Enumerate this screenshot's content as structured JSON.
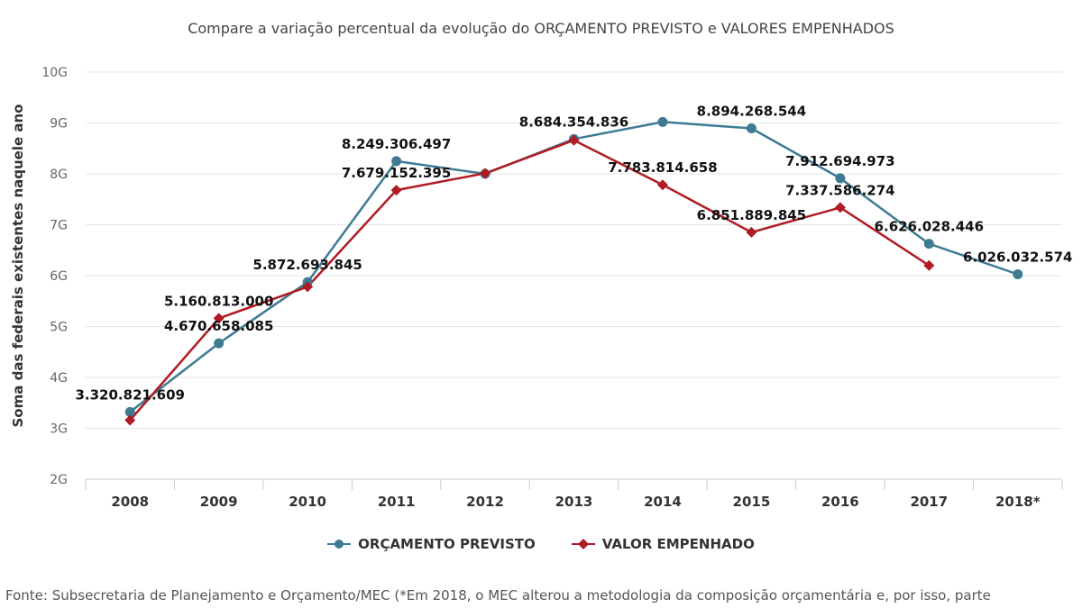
{
  "subtitle": "Compare a variação percentual da evolução do ORÇAMENTO PREVISTO e VALORES EMPENHADOS",
  "source_note": "Fonte: Subsecretaria de Planejamento e Orçamento/MEC (*Em 2018, o MEC alterou a metodologia da composição orçamentária e, por isso, parte",
  "colors": {
    "orcamento": "#3e7b93",
    "empenhado": "#b01c24",
    "grid": "#e6e6e6",
    "axis": "#cccccc"
  },
  "chart_data": {
    "type": "line",
    "ylabel": "Soma das federais existentes naquele ano",
    "xlabel": "",
    "categories": [
      "2008",
      "2009",
      "2010",
      "2011",
      "2012",
      "2013",
      "2014",
      "2015",
      "2016",
      "2017",
      "2018*"
    ],
    "yticks": [
      "2G",
      "3G",
      "4G",
      "5G",
      "6G",
      "7G",
      "8G",
      "9G",
      "10G"
    ],
    "ylim": [
      2000000000,
      10000000000
    ],
    "grid": true,
    "legend_position": "bottom",
    "series": [
      {
        "name": "ORÇAMENTO PREVISTO",
        "marker": "circle",
        "values": [
          3320821609,
          4670658085,
          5872693845,
          8249306497,
          8000000000,
          8684354836,
          9020000000,
          8894268544,
          7912694973,
          6626028446,
          6026032574
        ],
        "labels": [
          "3.320.821.609",
          "4.670.658.085",
          "5.872.693.845",
          "8.249.306.497",
          "",
          "8.684.354.836",
          "",
          "8.894.268.544",
          "7.912.694.973",
          "6.626.028.446",
          "6.026.032.574"
        ]
      },
      {
        "name": "VALOR EMPENHADO",
        "marker": "diamond",
        "values": [
          3160000000,
          5160813000,
          5780000000,
          7679152395,
          8010000000,
          8660000000,
          7783814658,
          6851889845,
          7337586274,
          6200000000,
          null
        ],
        "labels": [
          "",
          "5.160.813.000",
          "",
          "7.679.152.395",
          "",
          "",
          "7.783.814.658",
          "6.851.889.845",
          "7.337.586.274",
          "",
          ""
        ]
      }
    ]
  }
}
